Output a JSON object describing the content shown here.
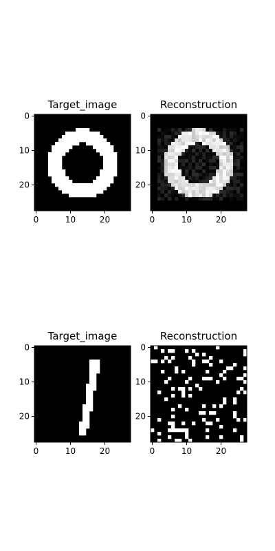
{
  "chart_data": [
    {
      "type": "heatmap",
      "title": "Target_image",
      "image": "digit-0-target",
      "grid": [
        28,
        28
      ],
      "colormap": "gray",
      "xticks": [
        "0",
        "10",
        "20"
      ],
      "yticks": [
        "0",
        "10",
        "20"
      ],
      "xlim": [
        -0.5,
        27.5
      ],
      "ylim": [
        27.5,
        -0.5
      ]
    },
    {
      "type": "heatmap",
      "title": "Reconstruction",
      "image": "digit-0-reconstruction",
      "grid": [
        28,
        28
      ],
      "colormap": "gray",
      "xticks": [
        "0",
        "10",
        "20"
      ],
      "yticks": [
        "0",
        "10",
        "20"
      ],
      "xlim": [
        -0.5,
        27.5
      ],
      "ylim": [
        27.5,
        -0.5
      ]
    },
    {
      "type": "heatmap",
      "title": "Target_image",
      "image": "digit-1-target",
      "grid": [
        28,
        28
      ],
      "colormap": "gray",
      "xticks": [
        "0",
        "10",
        "20"
      ],
      "yticks": [
        "0",
        "10",
        "20"
      ],
      "xlim": [
        -0.5,
        27.5
      ],
      "ylim": [
        27.5,
        -0.5
      ]
    },
    {
      "type": "heatmap",
      "title": "Reconstruction",
      "image": "digit-1-reconstruction-noise",
      "grid": [
        28,
        28
      ],
      "colormap": "gray",
      "xticks": [
        "0",
        "10",
        "20"
      ],
      "yticks": [
        "0",
        "10",
        "20"
      ],
      "xlim": [
        -0.5,
        27.5
      ],
      "ylim": [
        27.5,
        -0.5
      ]
    }
  ]
}
